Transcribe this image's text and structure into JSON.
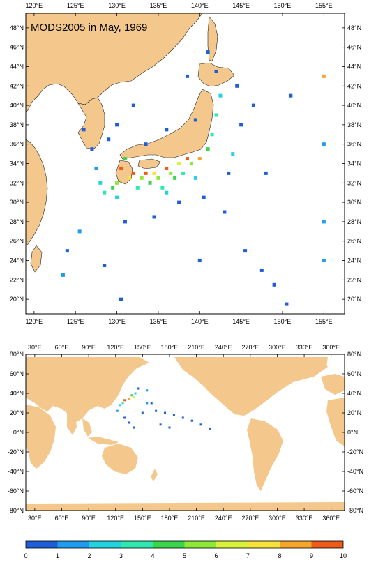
{
  "title": "MODS2005 in May, 1969",
  "colors": {
    "land": "#f4c88c",
    "ocean": "#ffffff",
    "frame": "#000000"
  },
  "japan_map": {
    "x_ticks": [
      "120°E",
      "125°E",
      "130°E",
      "135°E",
      "140°E",
      "145°E",
      "150°E",
      "155°E"
    ],
    "y_ticks": [
      "48°N",
      "46°N",
      "44°N",
      "42°N",
      "40°N",
      "38°N",
      "36°N",
      "34°N",
      "32°N",
      "30°N",
      "28°N",
      "26°N",
      "24°N",
      "22°N",
      "20°N"
    ],
    "lon_range": [
      119,
      157.5
    ],
    "lat_range": [
      18.5,
      49.5
    ],
    "observations": [
      {
        "lon": 130.5,
        "lat": 33.5,
        "level": 10
      },
      {
        "lon": 132.0,
        "lat": 33.0,
        "level": 10
      },
      {
        "lon": 133.5,
        "lat": 33.0,
        "level": 10
      },
      {
        "lon": 136.0,
        "lat": 33.5,
        "level": 10
      },
      {
        "lon": 138.5,
        "lat": 34.5,
        "level": 10
      },
      {
        "lon": 140.0,
        "lat": 34.5,
        "level": 9
      },
      {
        "lon": 155.0,
        "lat": 43.0,
        "level": 9
      },
      {
        "lon": 131.5,
        "lat": 32.5,
        "level": 8
      },
      {
        "lon": 134.5,
        "lat": 33.0,
        "level": 8
      },
      {
        "lon": 137.5,
        "lat": 34.0,
        "level": 7
      },
      {
        "lon": 130.0,
        "lat": 32.0,
        "level": 6
      },
      {
        "lon": 133.0,
        "lat": 32.5,
        "level": 6
      },
      {
        "lon": 135.0,
        "lat": 32.5,
        "level": 6
      },
      {
        "lon": 136.5,
        "lat": 33.0,
        "level": 6
      },
      {
        "lon": 139.0,
        "lat": 34.0,
        "level": 6
      },
      {
        "lon": 141.0,
        "lat": 35.5,
        "level": 5
      },
      {
        "lon": 129.5,
        "lat": 31.5,
        "level": 5
      },
      {
        "lon": 134.0,
        "lat": 32.0,
        "level": 5
      },
      {
        "lon": 137.0,
        "lat": 32.5,
        "level": 5
      },
      {
        "lon": 131.0,
        "lat": 34.5,
        "level": 5
      },
      {
        "lon": 128.5,
        "lat": 31.0,
        "level": 4
      },
      {
        "lon": 132.5,
        "lat": 31.5,
        "level": 4
      },
      {
        "lon": 135.5,
        "lat": 31.5,
        "level": 4
      },
      {
        "lon": 138.0,
        "lat": 33.0,
        "level": 4
      },
      {
        "lon": 141.5,
        "lat": 37.0,
        "level": 4
      },
      {
        "lon": 142.0,
        "lat": 39.0,
        "level": 4
      },
      {
        "lon": 130.0,
        "lat": 30.5,
        "level": 3
      },
      {
        "lon": 136.0,
        "lat": 31.0,
        "level": 3
      },
      {
        "lon": 139.5,
        "lat": 32.5,
        "level": 3
      },
      {
        "lon": 142.5,
        "lat": 41.0,
        "level": 3
      },
      {
        "lon": 128.0,
        "lat": 32.0,
        "level": 3
      },
      {
        "lon": 144.0,
        "lat": 35.0,
        "level": 3
      },
      {
        "lon": 127.5,
        "lat": 33.5,
        "level": 2
      },
      {
        "lon": 125.5,
        "lat": 27.0,
        "level": 2
      },
      {
        "lon": 123.5,
        "lat": 22.5,
        "level": 2
      },
      {
        "lon": 155.0,
        "lat": 36.0,
        "level": 2
      },
      {
        "lon": 155.0,
        "lat": 28.0,
        "level": 2
      },
      {
        "lon": 155.0,
        "lat": 24.0,
        "level": 2
      },
      {
        "lon": 131.0,
        "lat": 28.0,
        "level": 1
      },
      {
        "lon": 134.5,
        "lat": 28.5,
        "level": 1
      },
      {
        "lon": 137.5,
        "lat": 30.0,
        "level": 1
      },
      {
        "lon": 126.0,
        "lat": 37.5,
        "level": 1
      },
      {
        "lon": 127.0,
        "lat": 35.5,
        "level": 1
      },
      {
        "lon": 129.0,
        "lat": 36.5,
        "level": 1
      },
      {
        "lon": 133.5,
        "lat": 36.0,
        "level": 1
      },
      {
        "lon": 136.0,
        "lat": 37.5,
        "level": 1
      },
      {
        "lon": 139.5,
        "lat": 38.5,
        "level": 1
      },
      {
        "lon": 142.0,
        "lat": 43.5,
        "level": 1
      },
      {
        "lon": 144.5,
        "lat": 42.0,
        "level": 1
      },
      {
        "lon": 146.5,
        "lat": 40.0,
        "level": 1
      },
      {
        "lon": 145.0,
        "lat": 38.0,
        "level": 1
      },
      {
        "lon": 143.5,
        "lat": 33.0,
        "level": 1
      },
      {
        "lon": 140.5,
        "lat": 30.5,
        "level": 1
      },
      {
        "lon": 145.5,
        "lat": 25.0,
        "level": 1
      },
      {
        "lon": 147.5,
        "lat": 23.0,
        "level": 1
      },
      {
        "lon": 149.0,
        "lat": 21.5,
        "level": 1
      },
      {
        "lon": 150.5,
        "lat": 19.5,
        "level": 1
      },
      {
        "lon": 141.0,
        "lat": 45.5,
        "level": 1
      },
      {
        "lon": 138.5,
        "lat": 43.0,
        "level": 1
      },
      {
        "lon": 132.0,
        "lat": 40.0,
        "level": 1
      },
      {
        "lon": 130.0,
        "lat": 38.0,
        "level": 1
      },
      {
        "lon": 124.0,
        "lat": 25.0,
        "level": 1
      },
      {
        "lon": 130.5,
        "lat": 20.0,
        "level": 1
      },
      {
        "lon": 128.5,
        "lat": 23.5,
        "level": 1
      },
      {
        "lon": 140.0,
        "lat": 24.0,
        "level": 1
      },
      {
        "lon": 143.0,
        "lat": 29.0,
        "level": 1
      },
      {
        "lon": 148.0,
        "lat": 33.0,
        "level": 1
      },
      {
        "lon": 151.0,
        "lat": 41.0,
        "level": 1
      }
    ]
  },
  "world_map": {
    "x_ticks": [
      "30°E",
      "60°E",
      "90°E",
      "120°E",
      "150°E",
      "180°E",
      "210°E",
      "240°E",
      "270°E",
      "300°E",
      "330°E",
      "360°E"
    ],
    "y_ticks": [
      "80°N",
      "60°N",
      "40°N",
      "20°N",
      "0°N",
      "-20°N",
      "-40°N",
      "-60°N",
      "-80°N"
    ],
    "lon_range": [
      20,
      375
    ],
    "lat_range": [
      -80,
      80
    ],
    "observations": [
      {
        "lon": 130,
        "lat": 33,
        "level": 10
      },
      {
        "lon": 135,
        "lat": 34,
        "level": 9
      },
      {
        "lon": 140,
        "lat": 36,
        "level": 7
      },
      {
        "lon": 138,
        "lat": 38,
        "level": 5
      },
      {
        "lon": 128,
        "lat": 30,
        "level": 4
      },
      {
        "lon": 125,
        "lat": 28,
        "level": 3
      },
      {
        "lon": 142,
        "lat": 40,
        "level": 3
      },
      {
        "lon": 155,
        "lat": 43,
        "level": 2
      },
      {
        "lon": 155,
        "lat": 30,
        "level": 2
      },
      {
        "lon": 122,
        "lat": 22,
        "level": 2
      },
      {
        "lon": 130,
        "lat": 15,
        "level": 1
      },
      {
        "lon": 135,
        "lat": 10,
        "level": 1
      },
      {
        "lon": 140,
        "lat": 5,
        "level": 1
      },
      {
        "lon": 150,
        "lat": 20,
        "level": 1
      },
      {
        "lon": 165,
        "lat": 22,
        "level": 1
      },
      {
        "lon": 175,
        "lat": 20,
        "level": 1
      },
      {
        "lon": 185,
        "lat": 18,
        "level": 1
      },
      {
        "lon": 195,
        "lat": 15,
        "level": 1
      },
      {
        "lon": 205,
        "lat": 12,
        "level": 1
      },
      {
        "lon": 215,
        "lat": 8,
        "level": 1
      },
      {
        "lon": 225,
        "lat": 4,
        "level": 1
      },
      {
        "lon": 170,
        "lat": 8,
        "level": 1
      },
      {
        "lon": 180,
        "lat": 5,
        "level": 1
      },
      {
        "lon": 160,
        "lat": 30,
        "level": 1
      },
      {
        "lon": 145,
        "lat": 45,
        "level": 1
      }
    ]
  },
  "colorbar": {
    "labels": [
      "0",
      "1",
      "2",
      "3",
      "4",
      "5",
      "6",
      "7",
      "8",
      "9",
      "10"
    ],
    "colors": [
      "#1e5fd8",
      "#1f9cf0",
      "#22d3e0",
      "#2ee8b0",
      "#39d64a",
      "#8ee838",
      "#d8f23a",
      "#f6e23a",
      "#f6a62a",
      "#ee5a18"
    ]
  }
}
